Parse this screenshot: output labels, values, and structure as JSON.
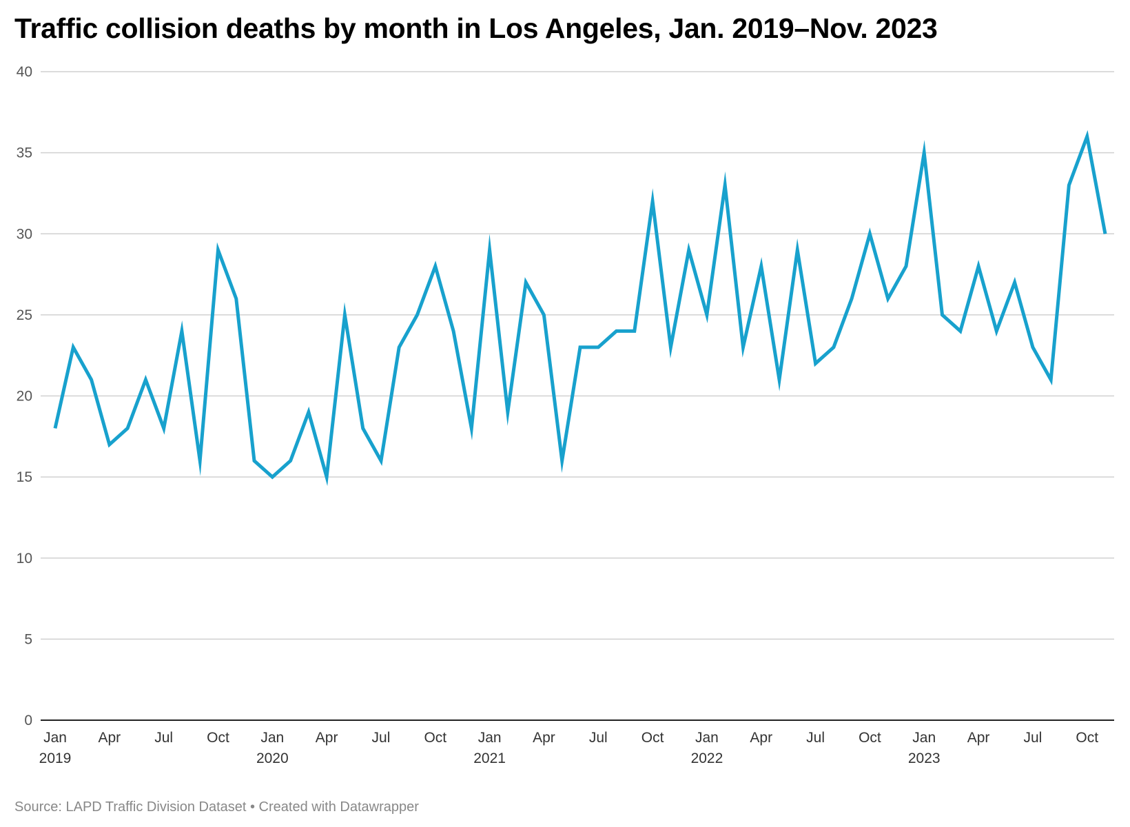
{
  "chart_data": {
    "type": "line",
    "title": "Traffic collision deaths by month in Los Angeles, Jan. 2019–Nov. 2023",
    "xlabel": "",
    "ylabel": "",
    "ylim": [
      0,
      40
    ],
    "yticks": [
      "0",
      "5",
      "10",
      "15",
      "20",
      "25",
      "30",
      "35",
      "40"
    ],
    "grid": true,
    "x_start": "2019-01",
    "xticks": [
      {
        "month_index": 0,
        "label": "Jan",
        "year": "2019"
      },
      {
        "month_index": 3,
        "label": "Apr"
      },
      {
        "month_index": 6,
        "label": "Jul"
      },
      {
        "month_index": 9,
        "label": "Oct"
      },
      {
        "month_index": 12,
        "label": "Jan",
        "year": "2020"
      },
      {
        "month_index": 15,
        "label": "Apr"
      },
      {
        "month_index": 18,
        "label": "Jul"
      },
      {
        "month_index": 21,
        "label": "Oct"
      },
      {
        "month_index": 24,
        "label": "Jan",
        "year": "2021"
      },
      {
        "month_index": 27,
        "label": "Apr"
      },
      {
        "month_index": 30,
        "label": "Jul"
      },
      {
        "month_index": 33,
        "label": "Oct"
      },
      {
        "month_index": 36,
        "label": "Jan",
        "year": "2022"
      },
      {
        "month_index": 39,
        "label": "Apr"
      },
      {
        "month_index": 42,
        "label": "Jul"
      },
      {
        "month_index": 45,
        "label": "Oct"
      },
      {
        "month_index": 48,
        "label": "Jan",
        "year": "2023"
      },
      {
        "month_index": 51,
        "label": "Apr"
      },
      {
        "month_index": 54,
        "label": "Jul"
      },
      {
        "month_index": 57,
        "label": "Oct"
      }
    ],
    "series": [
      {
        "color": "#18a1cd",
        "values": [
          18,
          23,
          21,
          17,
          18,
          21,
          18,
          24,
          16,
          29,
          26,
          16,
          15,
          16,
          19,
          15,
          25,
          18,
          16,
          23,
          25,
          28,
          24,
          18,
          29,
          19,
          27,
          25,
          16,
          23,
          23,
          24,
          24,
          32,
          23,
          29,
          25,
          33,
          23,
          28,
          21,
          29,
          22,
          23,
          26,
          30,
          26,
          28,
          35,
          25,
          24,
          28,
          24,
          27,
          23,
          21,
          33,
          36,
          30
        ]
      }
    ]
  },
  "footer": {
    "source": "Source: LAPD Traffic Division Dataset • Created with Datawrapper"
  }
}
